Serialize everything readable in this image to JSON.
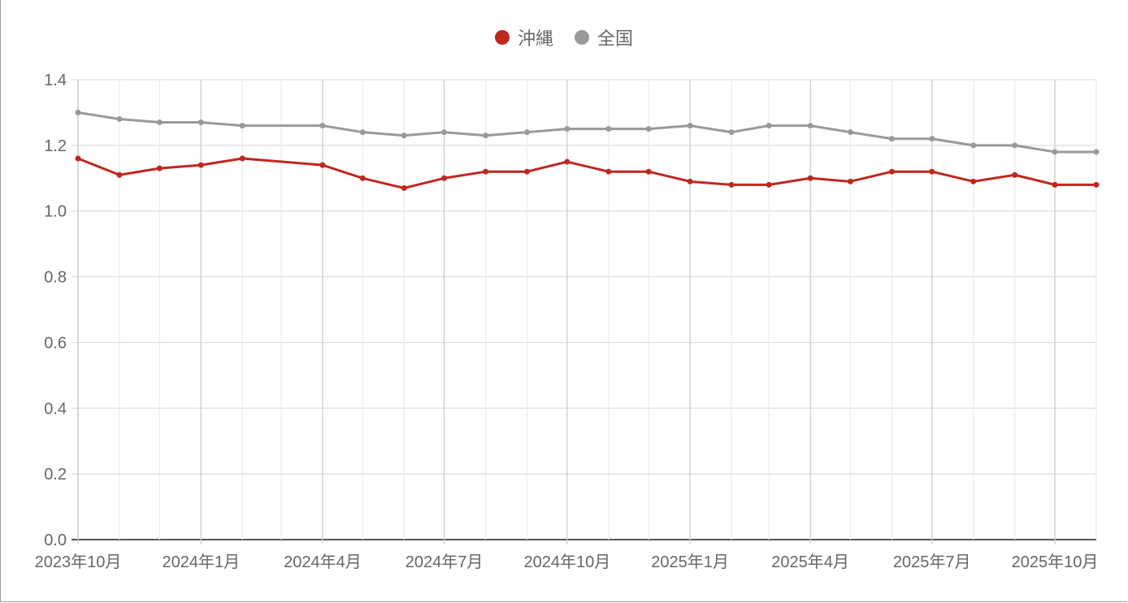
{
  "chart_data": {
    "type": "line",
    "title": "",
    "xlabel": "",
    "ylabel": "",
    "ylim": [
      0,
      1.4
    ],
    "yticks": [
      "0.0",
      "0.2",
      "0.4",
      "0.6",
      "0.8",
      "1.0",
      "1.2",
      "1.4"
    ],
    "xtick_labels": [
      "2023年10月",
      "2024年1月",
      "2024年4月",
      "2024年7月",
      "2024年10月",
      "2025年1月",
      "2025年4月",
      "2025年7月",
      "2025年10月"
    ],
    "legend_position": "top",
    "grid": true,
    "x": [
      "2023-10",
      "2023-11",
      "2023-12",
      "2024-01",
      "2024-02",
      "2024-04",
      "2024-05",
      "2024-06",
      "2024-07",
      "2024-08",
      "2024-09",
      "2024-10",
      "2024-11",
      "2024-12",
      "2025-01",
      "2025-02",
      "2025-03",
      "2025-04",
      "2025-05",
      "2025-06",
      "2025-07",
      "2025-08",
      "2025-09",
      "2025-10",
      "2025-11"
    ],
    "series": [
      {
        "name": "沖縄",
        "color": "#c0271f",
        "values": [
          1.16,
          1.11,
          1.13,
          1.14,
          1.16,
          1.14,
          1.1,
          1.07,
          1.1,
          1.12,
          1.12,
          1.15,
          1.12,
          1.12,
          1.09,
          1.08,
          1.08,
          1.1,
          1.09,
          1.12,
          1.12,
          1.09,
          1.11,
          1.08,
          1.08
        ]
      },
      {
        "name": "全国",
        "color": "#999999",
        "values": [
          1.3,
          1.28,
          1.27,
          1.27,
          1.26,
          1.26,
          1.24,
          1.23,
          1.24,
          1.23,
          1.24,
          1.25,
          1.25,
          1.25,
          1.26,
          1.24,
          1.26,
          1.26,
          1.24,
          1.22,
          1.22,
          1.2,
          1.2,
          1.18,
          1.18
        ]
      }
    ]
  },
  "legend": {
    "items": [
      {
        "label": "沖縄",
        "color": "#c0271f"
      },
      {
        "label": "全国",
        "color": "#999999"
      }
    ]
  }
}
